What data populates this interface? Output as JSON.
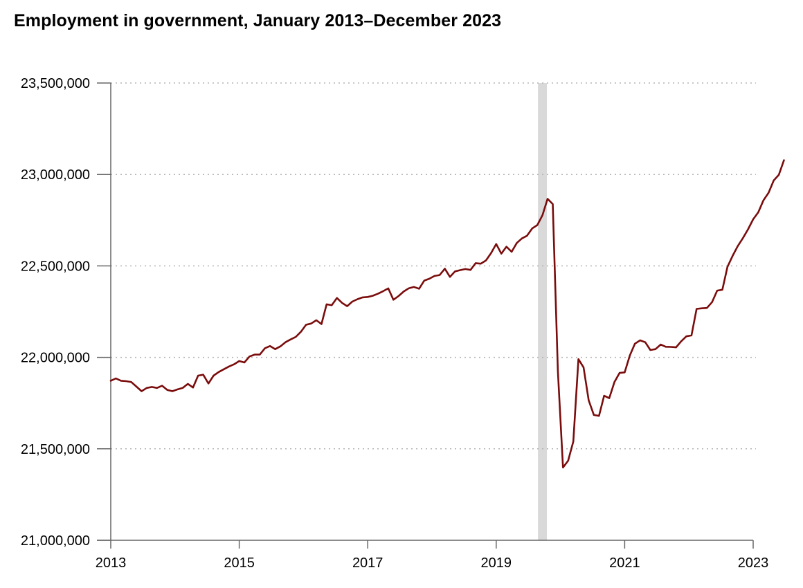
{
  "chart_data": {
    "type": "line",
    "title": "Employment in government, January 2013–December 2023",
    "xlabel": "",
    "ylabel": "",
    "ylim": [
      21000000,
      23500000
    ],
    "xlim": [
      2013.0,
      2023.0
    ],
    "y_ticks": [
      23500000,
      23000000,
      22500000,
      22000000,
      21500000,
      21000000
    ],
    "y_tick_labels": [
      "23,500,000",
      "23,000,000",
      "22,500,000",
      "22,000,000",
      "21,500,000",
      "21,000,000"
    ],
    "x_ticks": [
      2013,
      2015,
      2017,
      2019,
      2021,
      2023
    ],
    "x_tick_labels": [
      "2013",
      "2015",
      "2017",
      "2019",
      "2021",
      "2023"
    ],
    "grid": "horizontal dotted",
    "recession_shading": {
      "start": 2019.65,
      "end": 2019.79
    },
    "colors": {
      "line": "#7a0c0c",
      "grid": "#b3b3b3",
      "axis": "#666666",
      "shading": "#d9d9d9"
    },
    "series": [
      {
        "name": "Employment in government",
        "points": [
          [
            2013.0,
            21872000
          ],
          [
            2013.08,
            21885000
          ],
          [
            2013.16,
            21872000
          ],
          [
            2013.24,
            21870000
          ],
          [
            2013.32,
            21865000
          ],
          [
            2013.4,
            21840000
          ],
          [
            2013.48,
            21815000
          ],
          [
            2013.56,
            21833000
          ],
          [
            2013.64,
            21838000
          ],
          [
            2013.72,
            21833000
          ],
          [
            2013.8,
            21845000
          ],
          [
            2013.88,
            21822000
          ],
          [
            2013.96,
            21815000
          ],
          [
            2014.04,
            21825000
          ],
          [
            2014.12,
            21833000
          ],
          [
            2014.2,
            21855000
          ],
          [
            2014.28,
            21835000
          ],
          [
            2014.36,
            21900000
          ],
          [
            2014.44,
            21905000
          ],
          [
            2014.52,
            21857000
          ],
          [
            2014.6,
            21900000
          ],
          [
            2014.68,
            21920000
          ],
          [
            2014.76,
            21935000
          ],
          [
            2014.84,
            21950000
          ],
          [
            2014.92,
            21962000
          ],
          [
            2015.0,
            21980000
          ],
          [
            2015.08,
            21972000
          ],
          [
            2015.16,
            22005000
          ],
          [
            2015.24,
            22015000
          ],
          [
            2015.32,
            22015000
          ],
          [
            2015.4,
            22050000
          ],
          [
            2015.48,
            22062000
          ],
          [
            2015.56,
            22045000
          ],
          [
            2015.64,
            22060000
          ],
          [
            2015.72,
            22083000
          ],
          [
            2015.8,
            22098000
          ],
          [
            2015.88,
            22112000
          ],
          [
            2015.96,
            22140000
          ],
          [
            2016.04,
            22178000
          ],
          [
            2016.12,
            22185000
          ],
          [
            2016.2,
            22203000
          ],
          [
            2016.28,
            22182000
          ],
          [
            2016.36,
            22290000
          ],
          [
            2016.44,
            22285000
          ],
          [
            2016.52,
            22325000
          ],
          [
            2016.6,
            22298000
          ],
          [
            2016.68,
            22280000
          ],
          [
            2016.76,
            22305000
          ],
          [
            2016.84,
            22318000
          ],
          [
            2016.92,
            22328000
          ],
          [
            2017.0,
            22330000
          ],
          [
            2017.08,
            22337000
          ],
          [
            2017.16,
            22348000
          ],
          [
            2017.24,
            22362000
          ],
          [
            2017.32,
            22377000
          ],
          [
            2017.4,
            22315000
          ],
          [
            2017.48,
            22335000
          ],
          [
            2017.56,
            22360000
          ],
          [
            2017.64,
            22378000
          ],
          [
            2017.72,
            22385000
          ],
          [
            2017.8,
            22375000
          ],
          [
            2017.88,
            22420000
          ],
          [
            2017.96,
            22430000
          ],
          [
            2018.04,
            22445000
          ],
          [
            2018.12,
            22450000
          ],
          [
            2018.2,
            22485000
          ],
          [
            2018.28,
            22440000
          ],
          [
            2018.36,
            22470000
          ],
          [
            2018.44,
            22477000
          ],
          [
            2018.52,
            22483000
          ],
          [
            2018.6,
            22478000
          ],
          [
            2018.68,
            22515000
          ],
          [
            2018.76,
            22512000
          ],
          [
            2018.84,
            22530000
          ],
          [
            2018.92,
            22570000
          ],
          [
            2019.0,
            22620000
          ],
          [
            2019.08,
            22567000
          ],
          [
            2019.16,
            22605000
          ],
          [
            2019.24,
            22577000
          ],
          [
            2019.32,
            22625000
          ],
          [
            2019.4,
            22650000
          ],
          [
            2019.48,
            22665000
          ],
          [
            2019.56,
            22705000
          ],
          [
            2019.64,
            22723000
          ],
          [
            2019.72,
            22777000
          ],
          [
            2019.8,
            22867000
          ],
          [
            2019.88,
            22838000
          ],
          [
            2019.96,
            21925000
          ],
          [
            2020.04,
            21398000
          ],
          [
            2020.12,
            21435000
          ],
          [
            2020.2,
            21540000
          ],
          [
            2020.28,
            21990000
          ],
          [
            2020.36,
            21945000
          ],
          [
            2020.44,
            21765000
          ],
          [
            2020.52,
            21685000
          ],
          [
            2020.6,
            21680000
          ],
          [
            2020.68,
            21790000
          ],
          [
            2020.76,
            21777000
          ],
          [
            2020.84,
            21865000
          ],
          [
            2020.92,
            21915000
          ],
          [
            2021.0,
            21918000
          ],
          [
            2021.08,
            22010000
          ],
          [
            2021.16,
            22075000
          ],
          [
            2021.24,
            22093000
          ],
          [
            2021.32,
            22083000
          ],
          [
            2021.4,
            22040000
          ],
          [
            2021.48,
            22045000
          ],
          [
            2021.56,
            22070000
          ],
          [
            2021.64,
            22058000
          ],
          [
            2021.72,
            22057000
          ],
          [
            2021.8,
            22055000
          ],
          [
            2021.88,
            22088000
          ],
          [
            2021.96,
            22115000
          ],
          [
            2022.04,
            22120000
          ],
          [
            2022.12,
            22265000
          ],
          [
            2022.2,
            22268000
          ],
          [
            2022.28,
            22270000
          ],
          [
            2022.36,
            22302000
          ],
          [
            2022.44,
            22365000
          ],
          [
            2022.52,
            22370000
          ],
          [
            2022.6,
            22495000
          ],
          [
            2022.68,
            22555000
          ],
          [
            2022.76,
            22608000
          ],
          [
            2022.84,
            22652000
          ],
          [
            2022.92,
            22700000
          ],
          [
            2023.0,
            22755000
          ],
          [
            2023.08,
            22793000
          ],
          [
            2023.16,
            22858000
          ],
          [
            2023.24,
            22900000
          ],
          [
            2023.32,
            22967000
          ],
          [
            2023.4,
            22998000
          ],
          [
            2023.48,
            23078000
          ]
        ]
      }
    ]
  }
}
